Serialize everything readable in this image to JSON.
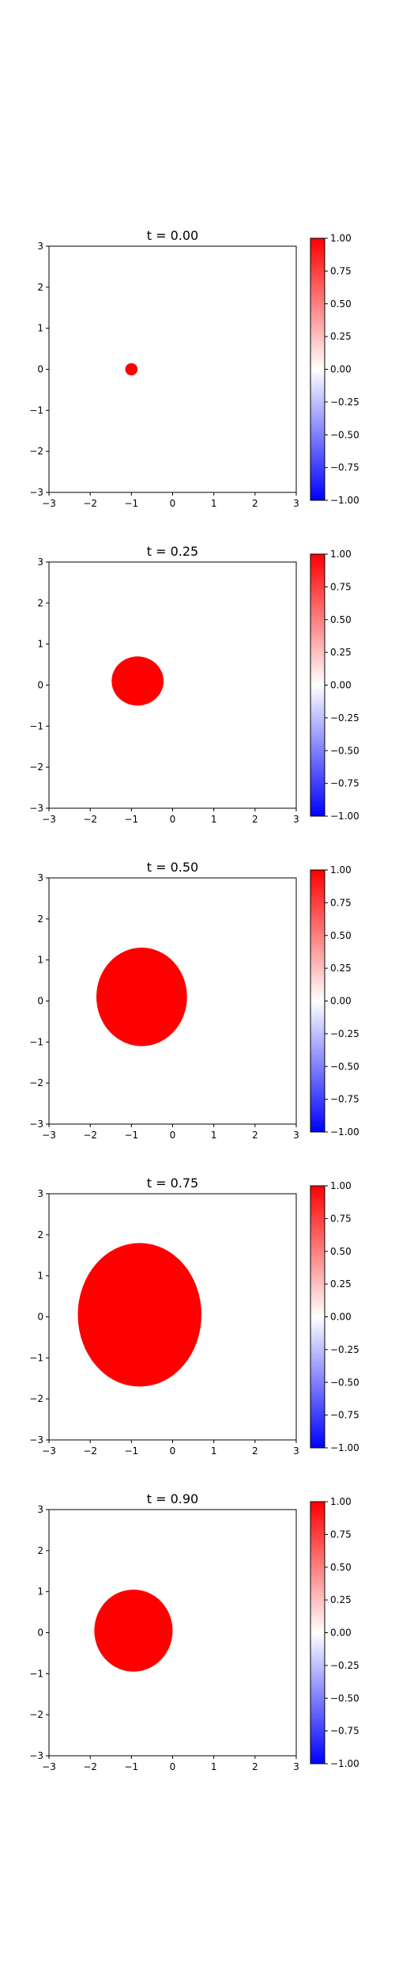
{
  "chart_data": [
    {
      "type": "heatmap",
      "title": "t = 0.00",
      "xlim": [
        -3,
        3
      ],
      "ylim": [
        -3,
        3
      ],
      "xticks": [
        -3,
        -2,
        -1,
        0,
        1,
        2,
        3
      ],
      "yticks": [
        -3,
        -2,
        -1,
        0,
        1,
        2,
        3
      ],
      "colorbar": {
        "vmin": -1.0,
        "vmax": 1.0,
        "ticks": [
          -1.0,
          -0.75,
          -0.5,
          -0.25,
          0.0,
          0.25,
          0.5,
          0.75,
          1.0
        ],
        "colormap": "bwr"
      },
      "region": {
        "value": 1.0,
        "center": [
          -1.0,
          0.0
        ],
        "rx": 0.15,
        "ry": 0.15
      },
      "background_value": 0.0
    },
    {
      "type": "heatmap",
      "title": "t = 0.25",
      "xlim": [
        -3,
        3
      ],
      "ylim": [
        -3,
        3
      ],
      "xticks": [
        -3,
        -2,
        -1,
        0,
        1,
        2,
        3
      ],
      "yticks": [
        -3,
        -2,
        -1,
        0,
        1,
        2,
        3
      ],
      "colorbar": {
        "vmin": -1.0,
        "vmax": 1.0,
        "ticks": [
          -1.0,
          -0.75,
          -0.5,
          -0.25,
          0.0,
          0.25,
          0.5,
          0.75,
          1.0
        ],
        "colormap": "bwr"
      },
      "region": {
        "value": 1.0,
        "center": [
          -0.85,
          0.1
        ],
        "rx": 0.63,
        "ry": 0.6
      },
      "background_value": 0.0
    },
    {
      "type": "heatmap",
      "title": "t = 0.50",
      "xlim": [
        -3,
        3
      ],
      "ylim": [
        -3,
        3
      ],
      "xticks": [
        -3,
        -2,
        -1,
        0,
        1,
        2,
        3
      ],
      "yticks": [
        -3,
        -2,
        -1,
        0,
        1,
        2,
        3
      ],
      "colorbar": {
        "vmin": -1.0,
        "vmax": 1.0,
        "ticks": [
          -1.0,
          -0.75,
          -0.5,
          -0.25,
          0.0,
          0.25,
          0.5,
          0.75,
          1.0
        ],
        "colormap": "bwr"
      },
      "region": {
        "value": 1.0,
        "center": [
          -0.75,
          0.1
        ],
        "rx": 1.1,
        "ry": 1.2
      },
      "background_value": 0.0
    },
    {
      "type": "heatmap",
      "title": "t = 0.75",
      "xlim": [
        -3,
        3
      ],
      "ylim": [
        -3,
        3
      ],
      "xticks": [
        -3,
        -2,
        -1,
        0,
        1,
        2,
        3
      ],
      "yticks": [
        -3,
        -2,
        -1,
        0,
        1,
        2,
        3
      ],
      "colorbar": {
        "vmin": -1.0,
        "vmax": 1.0,
        "ticks": [
          -1.0,
          -0.75,
          -0.5,
          -0.25,
          0.0,
          0.25,
          0.5,
          0.75,
          1.0
        ],
        "colormap": "bwr"
      },
      "region": {
        "value": 1.0,
        "center": [
          -0.8,
          0.05
        ],
        "rx": 1.5,
        "ry": 1.75
      },
      "background_value": 0.0
    },
    {
      "type": "heatmap",
      "title": "t = 0.90",
      "xlim": [
        -3,
        3
      ],
      "ylim": [
        -3,
        3
      ],
      "xticks": [
        -3,
        -2,
        -1,
        0,
        1,
        2,
        3
      ],
      "yticks": [
        -3,
        -2,
        -1,
        0,
        1,
        2,
        3
      ],
      "colorbar": {
        "vmin": -1.0,
        "vmax": 1.0,
        "ticks": [
          -1.0,
          -0.75,
          -0.5,
          -0.25,
          0.0,
          0.25,
          0.5,
          0.75,
          1.0
        ],
        "colormap": "bwr"
      },
      "region": {
        "value": 1.0,
        "center": [
          -0.95,
          0.05
        ],
        "rx": 0.95,
        "ry": 1.0
      },
      "background_value": 0.0
    }
  ]
}
